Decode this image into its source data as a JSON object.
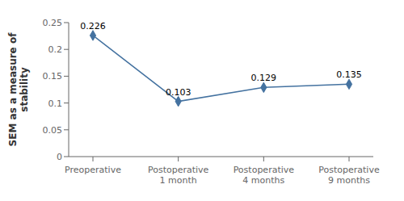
{
  "chart_data": {
    "type": "line",
    "ylabel": "SEM as a measure of\nstability",
    "categories": [
      "Preoperative",
      "Postoperative\n1 month",
      "Postoperative\n4 months",
      "Postoperative\n9 months"
    ],
    "values": [
      0.226,
      0.103,
      0.129,
      0.135
    ],
    "color": "#4472a0",
    "marker": "diamond",
    "ylim": [
      0,
      0.25
    ],
    "yticks": [
      0,
      0.05,
      0.1,
      0.15,
      0.2,
      0.25
    ],
    "data_labels": true,
    "grid": false
  }
}
